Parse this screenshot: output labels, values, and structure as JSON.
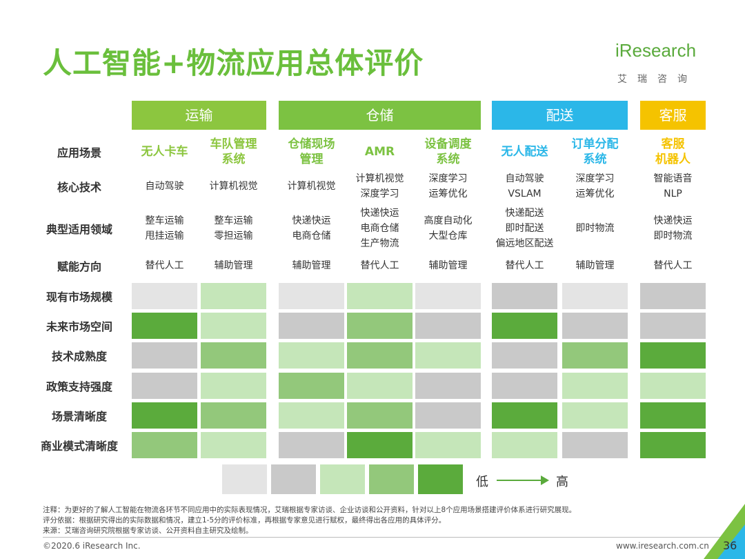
{
  "title": "人工智能+物流应用总体评价",
  "logo": {
    "brand": "iResearch",
    "sub": "艾瑞咨询"
  },
  "groups": [
    {
      "name": "运输",
      "color": "#8cc63f"
    },
    {
      "name": "仓储",
      "color": "#7cc242"
    },
    {
      "name": "配送",
      "color": "#2bb7e8"
    },
    {
      "name": "客服",
      "color": "#f5c300"
    }
  ],
  "row_labels": [
    "应用场景",
    "核心技术",
    "典型适用领域",
    "赋能方向"
  ],
  "columns": [
    {
      "group": 0,
      "scenario": [
        "无人卡车"
      ],
      "tech": [
        "自动驾驶"
      ],
      "domains": [
        "整车运输",
        "甩挂运输"
      ],
      "direction": "替代人工"
    },
    {
      "group": 0,
      "scenario": [
        "车队管理",
        "系统"
      ],
      "tech": [
        "计算机视觉"
      ],
      "domains": [
        "整车运输",
        "零担运输"
      ],
      "direction": "辅助管理"
    },
    {
      "group": 1,
      "scenario": [
        "仓储现场",
        "管理"
      ],
      "tech": [
        "计算机视觉"
      ],
      "domains": [
        "快递快运",
        "电商仓储"
      ],
      "direction": "辅助管理"
    },
    {
      "group": 1,
      "scenario": [
        "AMR"
      ],
      "tech": [
        "计算机视觉",
        "深度学习"
      ],
      "domains": [
        "快递快运",
        "电商仓储",
        "生产物流"
      ],
      "direction": "替代人工"
    },
    {
      "group": 1,
      "scenario": [
        "设备调度",
        "系统"
      ],
      "tech": [
        "深度学习",
        "运筹优化"
      ],
      "domains": [
        "高度自动化",
        "大型仓库"
      ],
      "direction": "辅助管理"
    },
    {
      "group": 2,
      "scenario": [
        "无人配送"
      ],
      "tech": [
        "自动驾驶",
        "VSLAM"
      ],
      "domains": [
        "快递配送",
        "即时配送",
        "偏远地区配送"
      ],
      "direction": "替代人工"
    },
    {
      "group": 2,
      "scenario": [
        "订单分配",
        "系统"
      ],
      "tech": [
        "深度学习",
        "运筹优化"
      ],
      "domains": [
        "即时物流"
      ],
      "direction": "辅助管理"
    },
    {
      "group": 3,
      "scenario": [
        "客服",
        "机器人"
      ],
      "tech": [
        "智能语音",
        "NLP"
      ],
      "domains": [
        "快递快运",
        "即时物流"
      ],
      "direction": "替代人工"
    }
  ],
  "ratings": {
    "labels": [
      "现有市场规模",
      "未来市场空间",
      "技术成熟度",
      "政策支持强度",
      "场景清晰度",
      "商业模式清晰度"
    ],
    "rows": [
      [
        1,
        3,
        1,
        3,
        1,
        2,
        1,
        2
      ],
      [
        5,
        3,
        2,
        4,
        2,
        5,
        2,
        2
      ],
      [
        2,
        4,
        3,
        4,
        3,
        2,
        4,
        5
      ],
      [
        2,
        3,
        4,
        3,
        2,
        2,
        3,
        3
      ],
      [
        5,
        4,
        3,
        4,
        2,
        5,
        3,
        5
      ],
      [
        4,
        3,
        2,
        5,
        3,
        3,
        2,
        5
      ]
    ],
    "level_colors": [
      "#e4e4e4",
      "#c9c9c9",
      "#c5e6b9",
      "#93c87b",
      "#5bab3c"
    ]
  },
  "legend": {
    "levels": [
      1,
      2,
      3,
      4,
      5
    ],
    "low": "低",
    "high": "高"
  },
  "notes": [
    "注释：为更好的了解人工智能在物流各环节不同应用中的实际表现情况，艾瑞根据专家访谈、企业访谈和公开资料，针对以上8个应用场景搭建评价体系进行研究展现。",
    "评分依据：根据研究得出的实际数据和情况，建立1-5分的评价标准，再根据专家意见进行赋权，最终得出各应用的具体评分。",
    "来源：艾瑞咨询研究院根据专家访谈、公开资料自主研究及绘制。"
  ],
  "footer": {
    "copyright": "©2020.6 iResearch Inc.",
    "url": "www.iresearch.com.cn",
    "page": "36"
  }
}
